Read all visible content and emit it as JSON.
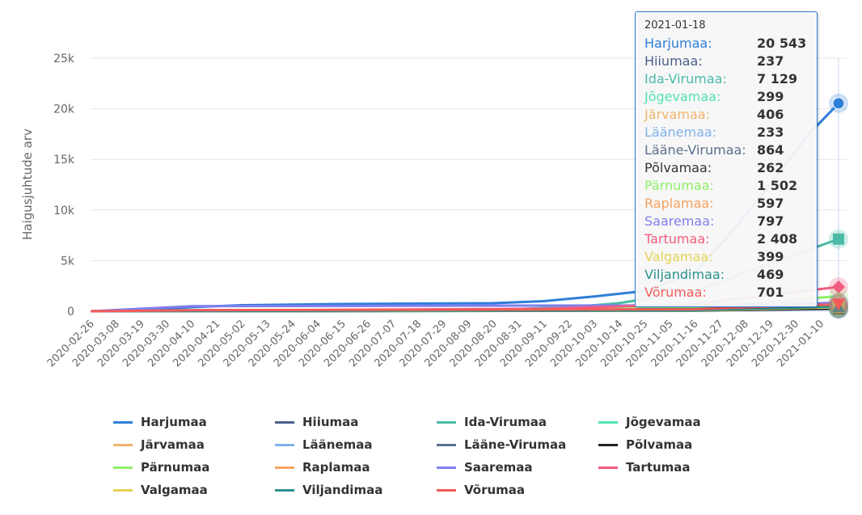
{
  "chart_data": {
    "type": "line",
    "ylabel": "Haigusjuhtude arv",
    "ylim": [
      0,
      25000
    ],
    "yticks": [
      "0",
      "5k",
      "10k",
      "15k",
      "20k",
      "25k"
    ],
    "xrange": [
      "2020-02-26",
      "2021-01-18"
    ],
    "xticks": [
      "2020-02-26",
      "2020-03-08",
      "2020-03-19",
      "2020-03-30",
      "2020-04-10",
      "2020-04-21",
      "2020-05-02",
      "2020-05-13",
      "2020-05-24",
      "2020-06-04",
      "2020-06-15",
      "2020-06-26",
      "2020-07-07",
      "2020-07-18",
      "2020-07-29",
      "2020-08-09",
      "2020-08-20",
      "2020-08-31",
      "2020-09-11",
      "2020-09-22",
      "2020-10-03",
      "2020-10-14",
      "2020-10-25",
      "2020-11-05",
      "2020-11-16",
      "2020-11-27",
      "2020-12-08",
      "2020-12-19",
      "2020-12-30",
      "2021-01-10"
    ],
    "series": [
      {
        "name": "Harjumaa",
        "color": "#2f7ed8",
        "points": [
          [
            "2020-02-26",
            0
          ],
          [
            "2020-03-19",
            100
          ],
          [
            "2020-04-10",
            400
          ],
          [
            "2020-05-02",
            600
          ],
          [
            "2020-06-15",
            720
          ],
          [
            "2020-08-20",
            800
          ],
          [
            "2020-09-11",
            1000
          ],
          [
            "2020-10-03",
            1450
          ],
          [
            "2020-10-25",
            2000
          ],
          [
            "2020-11-16",
            3800
          ],
          [
            "2020-12-01",
            7500
          ],
          [
            "2020-12-19",
            12500
          ],
          [
            "2021-01-05",
            17500
          ],
          [
            "2021-01-18",
            20543
          ]
        ]
      },
      {
        "name": "Hiiumaa",
        "color": "#4b5f8c",
        "points": [
          [
            "2020-02-26",
            0
          ],
          [
            "2020-04-10",
            100
          ],
          [
            "2020-12-01",
            150
          ],
          [
            "2021-01-18",
            237
          ]
        ]
      },
      {
        "name": "Ida-Virumaa",
        "color": "#4bbba7",
        "points": [
          [
            "2020-02-26",
            0
          ],
          [
            "2020-04-10",
            80
          ],
          [
            "2020-08-20",
            150
          ],
          [
            "2020-09-22",
            400
          ],
          [
            "2020-10-14",
            800
          ],
          [
            "2020-11-16",
            2000
          ],
          [
            "2020-12-08",
            3800
          ],
          [
            "2021-01-18",
            7129
          ]
        ]
      },
      {
        "name": "Jõgevamaa",
        "color": "#52e3b4",
        "points": [
          [
            "2020-02-26",
            0
          ],
          [
            "2020-11-16",
            60
          ],
          [
            "2021-01-18",
            299
          ]
        ]
      },
      {
        "name": "Järvamaa",
        "color": "#f0b46c",
        "points": [
          [
            "2020-02-26",
            0
          ],
          [
            "2020-11-16",
            80
          ],
          [
            "2021-01-18",
            406
          ]
        ]
      },
      {
        "name": "Läänemaa",
        "color": "#7fb3ef",
        "points": [
          [
            "2020-02-26",
            0
          ],
          [
            "2020-11-16",
            60
          ],
          [
            "2021-01-18",
            233
          ]
        ]
      },
      {
        "name": "Lääne-Virumaa",
        "color": "#5c6f8d",
        "points": [
          [
            "2020-02-26",
            0
          ],
          [
            "2020-11-16",
            200
          ],
          [
            "2021-01-18",
            864
          ]
        ]
      },
      {
        "name": "Põlvamaa",
        "color": "#222222",
        "points": [
          [
            "2020-02-26",
            0
          ],
          [
            "2020-11-16",
            60
          ],
          [
            "2021-01-18",
            262
          ]
        ]
      },
      {
        "name": "Pärnumaa",
        "color": "#8ff06a",
        "points": [
          [
            "2020-02-26",
            0
          ],
          [
            "2020-11-16",
            300
          ],
          [
            "2021-01-18",
            1502
          ]
        ]
      },
      {
        "name": "Raplamaa",
        "color": "#f7a35c",
        "points": [
          [
            "2020-02-26",
            0
          ],
          [
            "2020-11-16",
            120
          ],
          [
            "2021-01-18",
            597
          ]
        ]
      },
      {
        "name": "Saaremaa",
        "color": "#7f7fef",
        "points": [
          [
            "2020-02-26",
            0
          ],
          [
            "2020-04-10",
            500
          ],
          [
            "2020-11-16",
            580
          ],
          [
            "2021-01-18",
            797
          ]
        ]
      },
      {
        "name": "Tartumaa",
        "color": "#f15c80",
        "points": [
          [
            "2020-02-26",
            0
          ],
          [
            "2020-09-11",
            250
          ],
          [
            "2020-11-16",
            700
          ],
          [
            "2021-01-18",
            2408
          ]
        ]
      },
      {
        "name": "Valgamaa",
        "color": "#e4d354",
        "points": [
          [
            "2020-02-26",
            0
          ],
          [
            "2020-11-16",
            80
          ],
          [
            "2021-01-18",
            399
          ]
        ]
      },
      {
        "name": "Viljandimaa",
        "color": "#2b908f",
        "points": [
          [
            "2020-02-26",
            0
          ],
          [
            "2020-11-16",
            100
          ],
          [
            "2021-01-18",
            469
          ]
        ]
      },
      {
        "name": "Võrumaa",
        "color": "#f45b5b",
        "points": [
          [
            "2020-02-26",
            0
          ],
          [
            "2020-04-10",
            100
          ],
          [
            "2020-11-16",
            200
          ],
          [
            "2021-01-18",
            701
          ]
        ]
      }
    ]
  },
  "tooltip": {
    "date": "2021-01-18",
    "rows": [
      {
        "name": "Harjumaa:",
        "value": "20 543"
      },
      {
        "name": "Hiiumaa:",
        "value": "237"
      },
      {
        "name": "Ida-Virumaa:",
        "value": "7 129"
      },
      {
        "name": "Jõgevamaa:",
        "value": "299"
      },
      {
        "name": "Järvamaa:",
        "value": "406"
      },
      {
        "name": "Läänemaa:",
        "value": "233"
      },
      {
        "name": "Lääne-Virumaa:",
        "value": "864"
      },
      {
        "name": "Põlvamaa:",
        "value": "262"
      },
      {
        "name": "Pärnumaa:",
        "value": "1 502"
      },
      {
        "name": "Raplamaa:",
        "value": "597"
      },
      {
        "name": "Saaremaa:",
        "value": "797"
      },
      {
        "name": "Tartumaa:",
        "value": "2 408"
      },
      {
        "name": "Valgamaa:",
        "value": "399"
      },
      {
        "name": "Viljandimaa:",
        "value": "469"
      },
      {
        "name": "Võrumaa:",
        "value": "701"
      }
    ]
  }
}
